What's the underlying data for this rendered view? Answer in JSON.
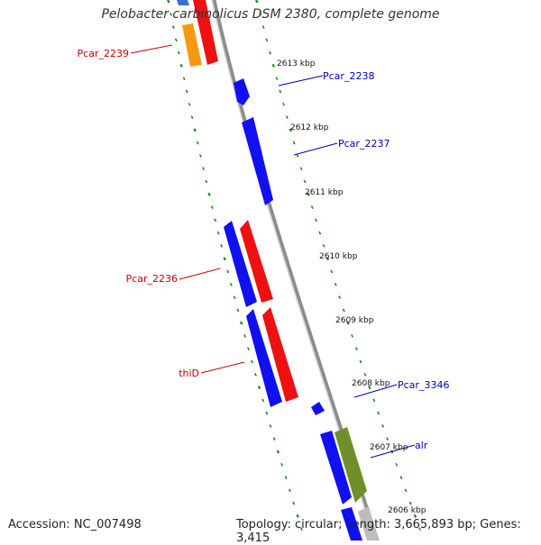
{
  "title": "Pelobacter carbinolicus DSM 2380, complete genome",
  "accession": "Accession: NC_007498",
  "topology": "Topology: circular; Length: 3,665,893 bp; Genes: 3,415",
  "colors": {
    "backbone": "#8c8c8c",
    "tick": "#1a8a1a",
    "gene_blue": "#1010f0",
    "gene_red": "#ee1111",
    "gene_orange": "#f59a10",
    "gene_green": "#6f8f2a",
    "gene_gray": "#bdbdbd",
    "label_red": "#cc0000",
    "label_blue": "#0000bb"
  },
  "scale_labels": [
    "2613 kbp",
    "2612 kbp",
    "2611 kbp",
    "2610 kbp",
    "2609 kbp",
    "2608 kbp",
    "2607 kbp",
    "2606 kbp"
  ],
  "gene_labels": {
    "pcar_2239": "Pcar_2239",
    "pcar_2238": "Pcar_2238",
    "pcar_2237": "Pcar_2237",
    "pcar_2236": "Pcar_2236",
    "thid": "thiD",
    "pcar_3346": "Pcar_3346",
    "alr": "alr"
  }
}
